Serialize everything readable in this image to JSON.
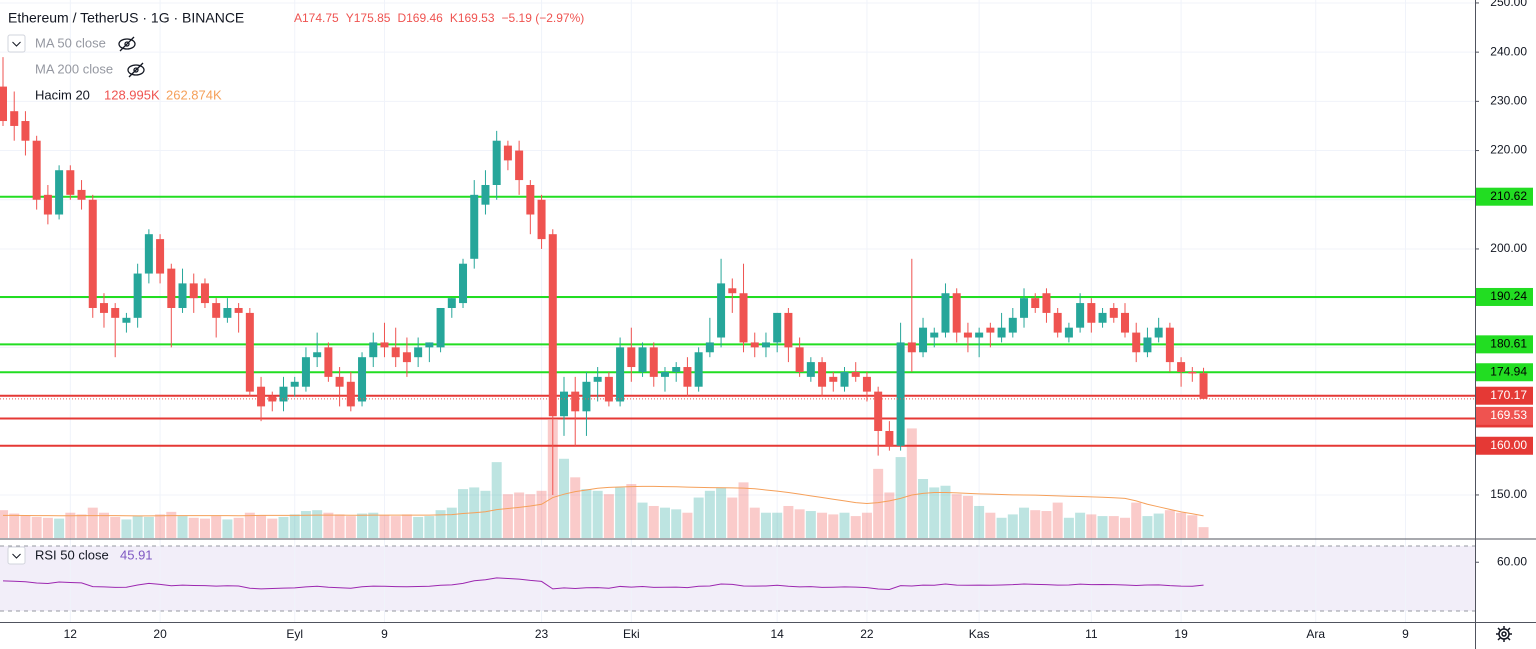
{
  "chart_data": {
    "type": "candlestick",
    "title": "Ethereum / TetherUS · 1G · BINANCE",
    "ohlc_labels": [
      "A174.75",
      "Y175.85",
      "D169.46",
      "K169.53",
      "−5.19 (−2.97%)"
    ],
    "hidden_indicators": [
      "MA 50 close",
      "MA 200 close"
    ],
    "volume_name": "Hacim 20",
    "volume_label": "128.995K",
    "volume_ma_label": "262.874K",
    "rsi_name": "RSI 50 close",
    "up_color": "#26a69a",
    "down_color": "#ef5350",
    "volume_ma_color": "#f5a05a",
    "rsi_color": "#9c27b0",
    "categories": [
      null,
      null,
      null,
      null,
      null,
      null,
      "12",
      null,
      null,
      null,
      null,
      null,
      null,
      null,
      "20",
      null,
      null,
      null,
      null,
      null,
      null,
      null,
      null,
      null,
      null,
      null,
      "Eyl",
      null,
      null,
      null,
      null,
      null,
      null,
      null,
      "9",
      null,
      null,
      null,
      null,
      null,
      null,
      null,
      null,
      null,
      null,
      null,
      null,
      null,
      "23",
      null,
      null,
      null,
      null,
      null,
      null,
      null,
      "Eki",
      null,
      null,
      null,
      null,
      null,
      null,
      null,
      null,
      null,
      null,
      null,
      null,
      "14",
      null,
      null,
      null,
      null,
      null,
      null,
      null,
      "22",
      null,
      null,
      null,
      null,
      null,
      null,
      null,
      null,
      null,
      "Kas",
      null,
      null,
      null,
      null,
      null,
      null,
      null,
      null,
      null,
      "11",
      null,
      null,
      null,
      null,
      null,
      null,
      null,
      "19",
      null,
      null,
      null,
      null,
      null,
      null,
      null,
      null,
      null,
      null,
      null,
      "Ara",
      null,
      null,
      null,
      null,
      null,
      null,
      null,
      "9"
    ],
    "open": [
      233,
      228,
      226,
      222,
      211,
      207,
      216,
      212,
      210,
      189,
      188,
      185,
      186,
      195,
      202,
      196,
      188,
      193,
      193,
      189,
      186,
      188,
      187,
      172,
      170,
      169,
      172,
      172,
      178,
      180,
      174,
      173,
      169,
      178,
      181,
      180,
      179,
      178,
      180,
      180,
      188,
      189,
      198,
      209,
      213,
      221,
      220,
      213,
      210,
      203,
      166,
      171,
      167,
      173,
      174,
      169,
      180,
      175,
      180,
      174,
      175,
      176,
      172,
      179,
      182,
      192,
      191,
      181,
      180,
      181,
      187,
      180,
      174,
      177,
      174,
      172,
      175,
      174,
      171,
      163,
      160,
      181,
      179,
      182,
      183,
      191,
      183,
      182,
      184,
      182,
      183,
      186,
      190,
      191,
      187,
      182,
      184,
      189,
      185,
      188,
      187,
      183,
      179,
      182,
      184,
      177,
      175,
      174.75,
      null,
      null,
      null,
      null,
      null,
      null,
      null,
      null,
      null,
      null,
      null,
      null,
      null,
      null,
      null,
      null,
      null,
      null
    ],
    "high": [
      239,
      232,
      228,
      223,
      213,
      217,
      217,
      214,
      211,
      191,
      189,
      187,
      197,
      204,
      203,
      197,
      196,
      195,
      194,
      190,
      190,
      189,
      188,
      174,
      171,
      174,
      174,
      180,
      183,
      181,
      176,
      175,
      179,
      183,
      185,
      184,
      182,
      182,
      181,
      188,
      190,
      198,
      214,
      216,
      224,
      222,
      222,
      214,
      211,
      204,
      174,
      174,
      175,
      176,
      175,
      182,
      184,
      181,
      181,
      176,
      177,
      178,
      180,
      186,
      198,
      194,
      197,
      183,
      183,
      187,
      188,
      182,
      178,
      178,
      175,
      176,
      177,
      175,
      172,
      165,
      185,
      198,
      186,
      184,
      193,
      192,
      185,
      184,
      185,
      187,
      188,
      192,
      191,
      192,
      188,
      185,
      191,
      190,
      188,
      189,
      189,
      185,
      184,
      186,
      185,
      178,
      176,
      175.85,
      null,
      null,
      null,
      null,
      null,
      null,
      null,
      null,
      null,
      null,
      null,
      null,
      null,
      null,
      null,
      null,
      null,
      null
    ],
    "low": [
      225,
      222,
      219,
      208,
      205,
      206,
      210,
      208,
      186,
      184,
      178,
      183,
      184,
      193,
      193,
      180,
      187,
      187,
      188,
      182,
      185,
      183,
      170,
      165,
      167,
      167,
      170,
      171,
      176,
      173,
      168,
      167,
      168,
      176,
      178,
      176,
      174,
      176,
      177,
      179,
      186,
      188,
      196,
      207,
      210,
      216,
      211,
      203,
      200,
      150,
      162,
      160,
      162,
      169,
      168,
      168,
      173,
      174,
      172,
      171,
      173,
      170,
      171,
      178,
      180,
      187,
      179,
      178,
      178,
      179,
      177,
      174,
      173,
      170,
      171,
      171,
      173,
      169,
      158,
      159,
      159,
      175,
      178,
      180,
      182,
      181,
      179,
      178,
      180,
      181,
      182,
      184,
      187,
      185,
      182,
      181,
      183,
      183,
      184,
      185,
      182,
      177,
      178,
      181,
      175,
      172,
      173,
      169.46,
      null,
      null,
      null,
      null,
      null,
      null,
      null,
      null,
      null,
      null,
      null,
      null,
      null,
      null,
      null,
      null,
      null,
      null
    ],
    "close": [
      226,
      225,
      222,
      210,
      207,
      216,
      211,
      210,
      188,
      187,
      186,
      186,
      195,
      203,
      195,
      188,
      193,
      190,
      189,
      186,
      188,
      187,
      171,
      168,
      169,
      172,
      173,
      178,
      179,
      174,
      172,
      168,
      178,
      181,
      180,
      178,
      177,
      180,
      181,
      188,
      190,
      197,
      211,
      213,
      222,
      218,
      214,
      207,
      202,
      166,
      171,
      167,
      173,
      174,
      169,
      180,
      176,
      180,
      174,
      175,
      176,
      172,
      179,
      181,
      193,
      191,
      181,
      180,
      181,
      187,
      180,
      175,
      177,
      172,
      173,
      175,
      174,
      171,
      163,
      160,
      181,
      179,
      184,
      183,
      191,
      183,
      182,
      183,
      183,
      184,
      186,
      190,
      188,
      187,
      183,
      184,
      189,
      185,
      187,
      186,
      183,
      179,
      182,
      184,
      177,
      175,
      174.7,
      169.53,
      null,
      null,
      null,
      null,
      null,
      null,
      null,
      null,
      null,
      null,
      null,
      null,
      null,
      null,
      null,
      null,
      null,
      null
    ],
    "volume": [
      330,
      290,
      270,
      250,
      240,
      230,
      300,
      280,
      360,
      300,
      250,
      220,
      260,
      250,
      280,
      310,
      260,
      240,
      230,
      260,
      220,
      240,
      300,
      270,
      230,
      250,
      280,
      320,
      330,
      300,
      280,
      260,
      290,
      300,
      270,
      260,
      280,
      250,
      260,
      330,
      360,
      580,
      600,
      560,
      900,
      520,
      540,
      520,
      560,
      1400,
      940,
      720,
      580,
      560,
      520,
      600,
      640,
      420,
      380,
      360,
      340,
      300,
      480,
      560,
      600,
      480,
      660,
      360,
      300,
      300,
      380,
      340,
      320,
      300,
      280,
      300,
      260,
      300,
      820,
      540,
      960,
      1300,
      700,
      600,
      620,
      520,
      500,
      380,
      300,
      240,
      280,
      360,
      330,
      320,
      420,
      240,
      300,
      280,
      260,
      260,
      240,
      420,
      260,
      290,
      330,
      300,
      270,
      128.995,
      null,
      null,
      null,
      null,
      null,
      null,
      null,
      null,
      null,
      null,
      null,
      null,
      null,
      null,
      null,
      null,
      null,
      null
    ],
    "volume_ma": [
      268,
      268,
      267,
      266,
      265,
      264,
      264,
      265,
      266,
      266,
      265,
      264,
      263,
      263,
      264,
      265,
      266,
      266,
      266,
      266,
      265,
      264,
      266,
      268,
      268,
      268,
      268,
      270,
      272,
      272,
      272,
      270,
      270,
      271,
      272,
      272,
      272,
      272,
      272,
      274,
      278,
      290,
      300,
      312,
      336,
      350,
      364,
      380,
      400,
      480,
      520,
      550,
      570,
      590,
      600,
      605,
      610,
      612,
      612,
      610,
      608,
      604,
      600,
      598,
      596,
      594,
      592,
      585,
      570,
      556,
      540,
      520,
      500,
      480,
      460,
      440,
      420,
      410,
      420,
      440,
      470,
      510,
      530,
      540,
      540,
      536,
      530,
      524,
      520,
      516,
      512,
      510,
      508,
      504,
      500,
      496,
      492,
      488,
      484,
      478,
      470,
      440,
      400,
      370,
      340,
      310,
      288,
      262.874,
      null,
      null,
      null,
      null,
      null,
      null,
      null,
      null,
      null,
      null,
      null,
      null,
      null,
      null,
      null,
      null,
      null,
      null
    ],
    "rsi": [
      48.5,
      48.3,
      48.0,
      47.2,
      46.9,
      47.8,
      47.5,
      47.3,
      45.0,
      44.8,
      44.5,
      44.6,
      46,
      47,
      46.4,
      45.5,
      45.9,
      45.7,
      45.6,
      45.3,
      45.5,
      45.4,
      44.0,
      43.6,
      43.8,
      44.1,
      44.2,
      44.8,
      45.2,
      44.6,
      44.3,
      44.0,
      44.9,
      45.3,
      45.2,
      45.0,
      44.9,
      45.1,
      45.2,
      45.8,
      46.1,
      47.0,
      48.6,
      49.2,
      50.4,
      50.0,
      49.6,
      48.8,
      48.2,
      43.6,
      44.2,
      43.8,
      44.3,
      44.4,
      44.0,
      45.1,
      44.7,
      45.1,
      44.5,
      44.6,
      44.7,
      44.4,
      45.2,
      45.4,
      46.6,
      46.4,
      45.4,
      45.3,
      45.4,
      45.8,
      45.2,
      44.8,
      45.0,
      44.5,
      44.6,
      44.8,
      44.7,
      44.4,
      43.5,
      43.2,
      45.6,
      45.4,
      45.9,
      45.8,
      46.6,
      45.9,
      45.8,
      45.9,
      45.8,
      46.0,
      46.2,
      46.6,
      46.4,
      46.2,
      45.9,
      46.0,
      46.5,
      46.2,
      46.3,
      46.2,
      46.0,
      45.7,
      46.0,
      46.1,
      45.6,
      45.3,
      45.2,
      45.91,
      null,
      null,
      null,
      null,
      null,
      null,
      null,
      null,
      null,
      null,
      null,
      null,
      null,
      null,
      null,
      null,
      null,
      null
    ],
    "ylim": [
      141.25,
      250.6
    ],
    "yticks": [
      {
        "value": 250,
        "label": "250.00"
      },
      {
        "value": 240,
        "label": "240.00"
      },
      {
        "value": 230,
        "label": "230.00"
      },
      {
        "value": 220,
        "label": "220.00"
      },
      {
        "value": 210,
        "label": "210.00"
      },
      {
        "value": 200,
        "label": "200.00"
      },
      {
        "value": 190,
        "label": "190.00"
      },
      {
        "value": 180,
        "label": "180.00"
      },
      {
        "value": 170,
        "label": "170.00"
      },
      {
        "value": 160,
        "label": "160.00"
      },
      {
        "value": 150,
        "label": "150.00"
      }
    ],
    "levels": [
      210.62,
      190.24,
      180.61,
      174.94,
      170.17,
      165.55,
      {
        "value": 160,
        "label": "160.00"
      }
    ],
    "level_colors": [
      "#22dd22",
      "#22dd22",
      "#22dd22",
      "#22dd22",
      "#e53935",
      "#e53935",
      "#e53935"
    ],
    "rsi_ylim": [
      23.2,
      73.7
    ],
    "rsi_yticks": [
      {
        "value": 60,
        "label": "60.00"
      }
    ],
    "rsi_band": [
      30,
      70
    ],
    "grid": true
  }
}
